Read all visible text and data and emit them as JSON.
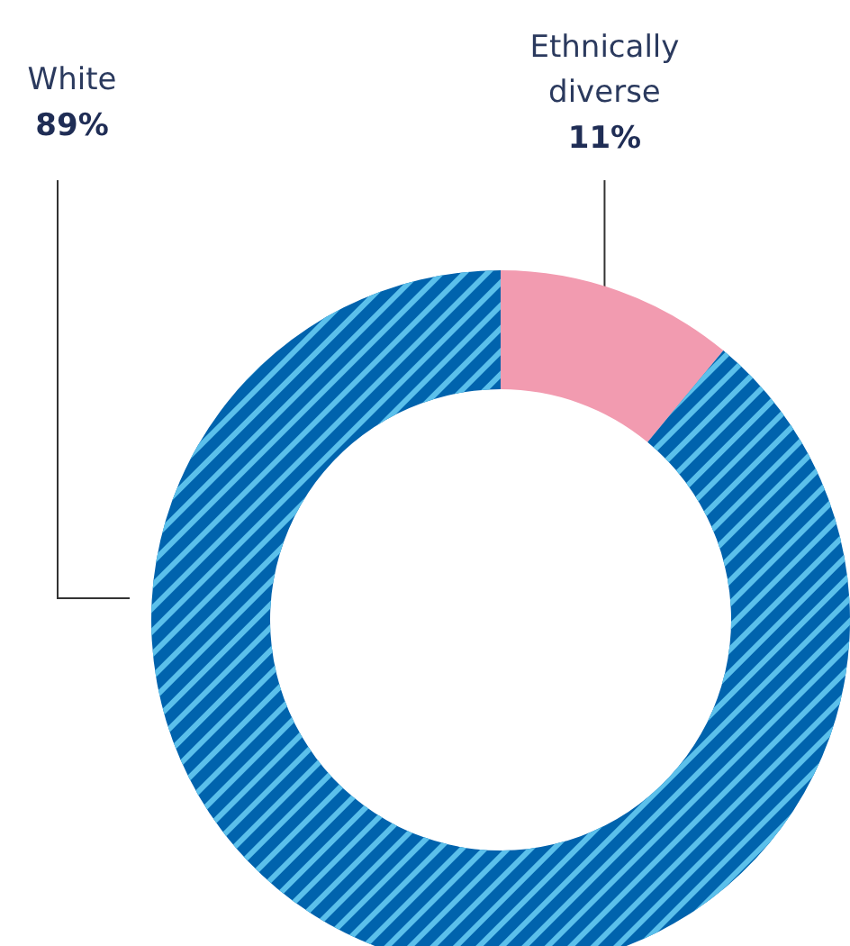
{
  "chart_data": {
    "type": "donut",
    "categories": [
      "Ethnically diverse",
      "White"
    ],
    "values": [
      11,
      89
    ],
    "colors": [
      "#f29bb0",
      "#0063ad"
    ],
    "value_labels": [
      "11%",
      "89%"
    ],
    "legend": false
  }
}
